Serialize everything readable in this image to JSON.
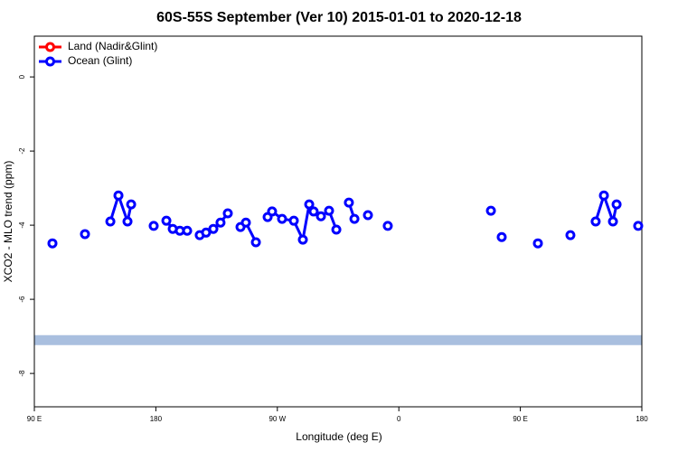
{
  "chart_data": {
    "type": "line",
    "title": "60S-55S September (Ver 10)   2015-01-01 to 2020-12-18",
    "x_label": "Longitude (deg E)",
    "y_label": "XCO2 - MLO trend (ppm)",
    "xlim": [
      90,
      540
    ],
    "xticks": [
      {
        "value": 90,
        "label": "90 E"
      },
      {
        "value": 180,
        "label": "180"
      },
      {
        "value": 270,
        "label": "90 W"
      },
      {
        "value": 360,
        "label": "0"
      },
      {
        "value": 450,
        "label": "90 E"
      },
      {
        "value": 540,
        "label": "180"
      }
    ],
    "ylim": [
      -8.9,
      1.1
    ],
    "yticks": [
      0,
      -2,
      -4,
      -6,
      -8
    ],
    "legend": "top-left",
    "reference_line": {
      "value": -7.1,
      "color": "#a9bfdf"
    },
    "x": [
      103.4,
      null,
      127.5,
      null,
      146.3,
      152.3,
      159,
      161.7,
      null,
      178.4,
      null,
      187.8,
      192.5,
      197.8,
      203.2,
      null,
      212.5,
      217.2,
      222.6,
      227.9,
      233.3,
      null,
      242.7,
      246.7,
      254.1,
      null,
      262.8,
      266.1,
      273.5,
      282.2,
      288.9,
      293.6,
      296.9,
      302.3,
      308.3,
      313.7,
      null,
      323,
      327.1,
      null,
      337.1,
      null,
      351.8,
      null,
      428.2,
      null,
      436.2,
      null,
      463,
      null,
      487.1,
      null,
      505.8,
      511.9,
      518.6,
      521.3,
      null,
      537.3
    ],
    "series": [
      {
        "name": "Land (Nadir&Glint)",
        "color": "#ff0000"
      },
      {
        "name": "Ocean (Glint)",
        "color": "#0000ff",
        "values": [
          -4.49,
          null,
          -4.24,
          null,
          -3.9,
          -3.2,
          -3.9,
          -3.44,
          null,
          -4.02,
          null,
          -3.88,
          -4.1,
          -4.15,
          -4.15,
          null,
          -4.27,
          -4.2,
          -4.1,
          -3.93,
          -3.68,
          null,
          -4.05,
          -3.93,
          -4.46,
          null,
          -3.78,
          -3.63,
          -3.83,
          -3.88,
          -4.39,
          -3.44,
          -3.63,
          -3.76,
          -3.61,
          -4.12,
          null,
          -3.39,
          -3.83,
          null,
          -3.73,
          null,
          -4.02,
          null,
          -3.61,
          null,
          -4.32,
          null,
          -4.49,
          null,
          -4.27,
          null,
          -3.9,
          -3.2,
          -3.9,
          -3.44,
          null,
          -4.02
        ]
      }
    ]
  }
}
